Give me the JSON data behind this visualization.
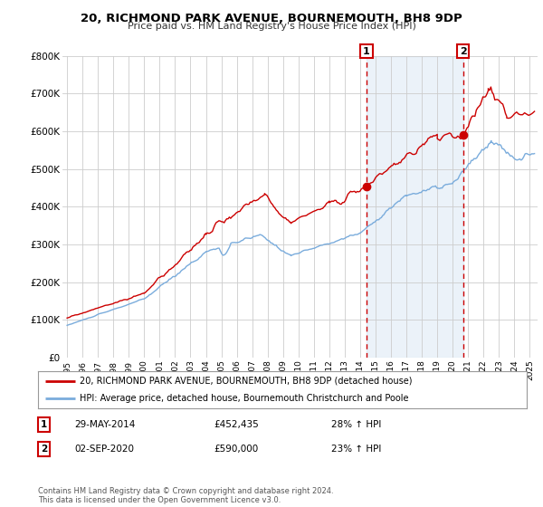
{
  "title": "20, RICHMOND PARK AVENUE, BOURNEMOUTH, BH8 9DP",
  "subtitle": "Price paid vs. HM Land Registry's House Price Index (HPI)",
  "legend_line1": "20, RICHMOND PARK AVENUE, BOURNEMOUTH, BH8 9DP (detached house)",
  "legend_line2": "HPI: Average price, detached house, Bournemouth Christchurch and Poole",
  "sale1_label": "1",
  "sale1_date": "29-MAY-2014",
  "sale1_price": "£452,435",
  "sale1_hpi": "28% ↑ HPI",
  "sale2_label": "2",
  "sale2_date": "02-SEP-2020",
  "sale2_price": "£590,000",
  "sale2_hpi": "23% ↑ HPI",
  "footer": "Contains HM Land Registry data © Crown copyright and database right 2024.\nThis data is licensed under the Open Government Licence v3.0.",
  "red_color": "#cc0000",
  "blue_color": "#7aacdc",
  "background_color": "#ffffff",
  "grid_color": "#cccccc",
  "sale1_x": 2014.41,
  "sale2_x": 2020.67,
  "sale1_y": 452435,
  "sale2_y": 590000,
  "ylim": [
    0,
    800000
  ],
  "xlim_start": 1994.7,
  "xlim_end": 2025.5,
  "yticks": [
    0,
    100000,
    200000,
    300000,
    400000,
    500000,
    600000,
    700000,
    800000
  ],
  "ytick_labels": [
    "£0",
    "£100K",
    "£200K",
    "£300K",
    "£400K",
    "£500K",
    "£600K",
    "£700K",
    "£800K"
  ],
  "xticks": [
    1995,
    1996,
    1997,
    1998,
    1999,
    2000,
    2001,
    2002,
    2003,
    2004,
    2005,
    2006,
    2007,
    2008,
    2009,
    2010,
    2011,
    2012,
    2013,
    2014,
    2015,
    2016,
    2017,
    2018,
    2019,
    2020,
    2021,
    2022,
    2023,
    2024,
    2025
  ]
}
